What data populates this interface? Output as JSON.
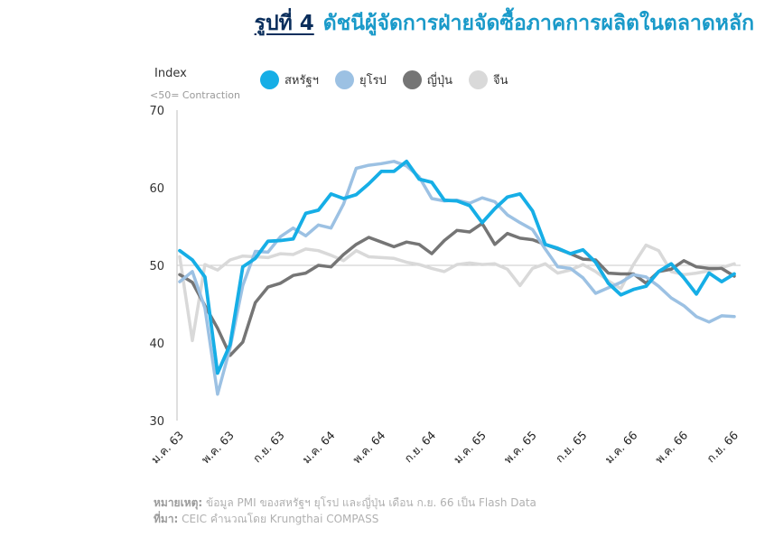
{
  "title": {
    "fig": "รูปที่ 4",
    "text": "ดัชนีผู้จัดการฝ่ายจัดซื้อภาคการผลิตในตลาดหลัก"
  },
  "axis": {
    "ylabel": "Index",
    "ysub": "<50= Contraction"
  },
  "notes": {
    "remark_label": "หมายเหตุ:",
    "remark_text": " ข้อมูล PMI ของสหรัฐฯ ยุโรป และญี่ปุ่น เดือน ก.ย. 66 เป็น Flash Data",
    "source_label": "ที่มา:",
    "source_text": " CEIC คำนวณโดย Krungthai COMPASS"
  },
  "chart_data": {
    "type": "line",
    "ylim": [
      30,
      70
    ],
    "yticks": [
      30,
      40,
      50,
      60,
      70
    ],
    "reference_line": 50,
    "grid": false,
    "legend_position": "top",
    "x": [
      "ม.ค. 63",
      "ก.พ. 63",
      "มี.ค. 63",
      "เม.ย. 63",
      "พ.ค. 63",
      "มิ.ย. 63",
      "ก.ค. 63",
      "ส.ค. 63",
      "ก.ย. 63",
      "ต.ค. 63",
      "พ.ย. 63",
      "ธ.ค. 63",
      "ม.ค. 64",
      "ก.พ. 64",
      "มี.ค. 64",
      "เม.ย. 64",
      "พ.ค. 64",
      "มิ.ย. 64",
      "ก.ค. 64",
      "ส.ค. 64",
      "ก.ย. 64",
      "ต.ค. 64",
      "พ.ย. 64",
      "ธ.ค. 64",
      "ม.ค. 65",
      "ก.พ. 65",
      "มี.ค. 65",
      "เม.ย. 65",
      "พ.ค. 65",
      "มิ.ย. 65",
      "ก.ค. 65",
      "ส.ค. 65",
      "ก.ย. 65",
      "ต.ค. 65",
      "พ.ย. 65",
      "ธ.ค. 65",
      "ม.ค. 66",
      "ก.พ. 66",
      "มี.ค. 66",
      "เม.ย. 66",
      "พ.ค. 66",
      "มิ.ย. 66",
      "ก.ค. 66",
      "ส.ค. 66",
      "ก.ย. 66"
    ],
    "tick_labels": [
      "ม.ค. 63",
      "พ.ค. 63",
      "ก.ย. 63",
      "ม.ค. 64",
      "พ.ค. 64",
      "ก.ย. 64",
      "ม.ค. 65",
      "พ.ค. 65",
      "ก.ย. 65",
      "ม.ค. 66",
      "พ.ค. 66",
      "ก.ย. 66"
    ],
    "tick_index": [
      0,
      4,
      8,
      12,
      16,
      20,
      24,
      28,
      32,
      36,
      40,
      44
    ],
    "series": [
      {
        "name": "จีน",
        "color": "#d9d9d9",
        "width": 3.5,
        "values": [
          51.1,
          40.3,
          50.1,
          49.4,
          50.7,
          51.2,
          51.1,
          51.0,
          51.5,
          51.4,
          52.1,
          51.9,
          51.3,
          50.6,
          51.9,
          51.1,
          51.0,
          50.9,
          50.4,
          50.1,
          49.6,
          49.2,
          50.1,
          50.3,
          50.1,
          50.2,
          49.5,
          47.4,
          49.6,
          50.2,
          49.0,
          49.4,
          50.1,
          49.2,
          48.0,
          47.0,
          50.1,
          52.6,
          51.9,
          49.2,
          48.8,
          49.0,
          49.3,
          49.7,
          50.2
        ]
      },
      {
        "name": "ญี่ปุ่น",
        "color": "#757575",
        "width": 3.5,
        "values": [
          48.8,
          47.8,
          44.8,
          41.9,
          38.4,
          40.1,
          45.2,
          47.2,
          47.7,
          48.7,
          49.0,
          50.0,
          49.8,
          51.4,
          52.7,
          53.6,
          53.0,
          52.4,
          53.0,
          52.7,
          51.5,
          53.2,
          54.5,
          54.3,
          55.4,
          52.7,
          54.1,
          53.5,
          53.3,
          52.7,
          52.1,
          51.5,
          50.8,
          50.7,
          49.0,
          48.9,
          48.9,
          47.7,
          49.2,
          49.5,
          50.6,
          49.8,
          49.6,
          49.6,
          48.6
        ]
      },
      {
        "name": "ยุโรป",
        "color": "#9cc1e3",
        "width": 3.5,
        "values": [
          47.9,
          49.2,
          44.5,
          33.4,
          39.4,
          47.4,
          51.8,
          51.7,
          53.7,
          54.8,
          53.8,
          55.2,
          54.8,
          57.9,
          62.5,
          62.9,
          63.1,
          63.4,
          62.8,
          61.4,
          58.6,
          58.3,
          58.4,
          58.0,
          58.7,
          58.2,
          56.5,
          55.5,
          54.6,
          52.1,
          49.8,
          49.6,
          48.4,
          46.4,
          47.1,
          47.8,
          48.8,
          48.5,
          47.3,
          45.8,
          44.8,
          43.4,
          42.7,
          43.5,
          43.4
        ]
      },
      {
        "name": "สหรัฐฯ",
        "color": "#16aee6",
        "width": 3.8,
        "values": [
          51.9,
          50.7,
          48.5,
          36.1,
          39.8,
          49.8,
          50.9,
          53.1,
          53.2,
          53.4,
          56.7,
          57.1,
          59.2,
          58.6,
          59.1,
          60.5,
          62.1,
          62.1,
          63.4,
          61.1,
          60.7,
          58.4,
          58.3,
          57.7,
          55.5,
          57.3,
          58.8,
          59.2,
          57.0,
          52.7,
          52.2,
          51.5,
          52.0,
          50.4,
          47.7,
          46.2,
          46.9,
          47.3,
          49.2,
          50.2,
          48.4,
          46.3,
          49.0,
          47.9,
          48.9
        ]
      }
    ]
  }
}
